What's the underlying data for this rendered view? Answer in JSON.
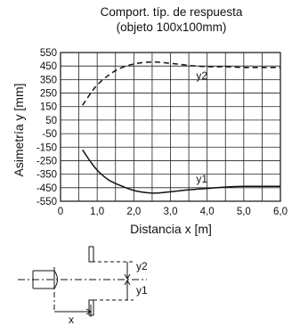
{
  "chart_data": {
    "type": "line",
    "title": "Comport. típ. de respuesta",
    "subtitle": "(objeto 100x100mm)",
    "xlabel": "Distancia x [m]",
    "ylabel": "Asimetría y [mm]",
    "xlim": [
      0,
      6.0
    ],
    "ylim": [
      -550,
      550
    ],
    "x_ticks": [
      "0",
      "1,0",
      "2,0",
      "3,0",
      "4,0",
      "5,0",
      "6,0"
    ],
    "y_ticks": [
      "550",
      "450",
      "350",
      "250",
      "150",
      "50",
      "-50",
      "-150",
      "-250",
      "-350",
      "-450",
      "-550"
    ],
    "grid": true,
    "series": [
      {
        "name": "y2",
        "style": "dashed",
        "points": [
          [
            0.6,
            160
          ],
          [
            0.8,
            240
          ],
          [
            1.0,
            310
          ],
          [
            1.3,
            380
          ],
          [
            1.6,
            430
          ],
          [
            2.0,
            465
          ],
          [
            2.5,
            480
          ],
          [
            3.0,
            470
          ],
          [
            3.5,
            455
          ],
          [
            4.0,
            445
          ],
          [
            4.5,
            445
          ],
          [
            5.0,
            440
          ],
          [
            5.5,
            440
          ],
          [
            6.0,
            440
          ]
        ]
      },
      {
        "name": "y1",
        "style": "solid",
        "points": [
          [
            0.6,
            -170
          ],
          [
            0.8,
            -250
          ],
          [
            1.0,
            -320
          ],
          [
            1.3,
            -390
          ],
          [
            1.6,
            -430
          ],
          [
            2.0,
            -470
          ],
          [
            2.5,
            -490
          ],
          [
            3.0,
            -480
          ],
          [
            3.5,
            -465
          ],
          [
            4.0,
            -455
          ],
          [
            4.5,
            -445
          ],
          [
            5.0,
            -440
          ],
          [
            5.5,
            -440
          ],
          [
            6.0,
            -440
          ]
        ]
      }
    ]
  },
  "diagram": {
    "label_y2": "y2",
    "label_y1": "y1",
    "label_x": "x"
  }
}
